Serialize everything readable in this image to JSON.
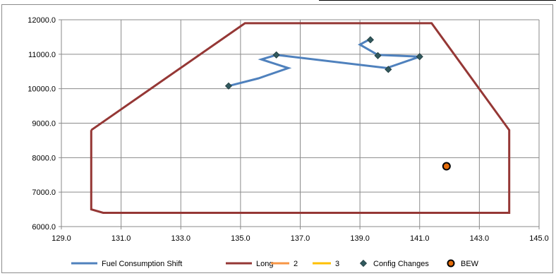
{
  "chart_data": {
    "type": "scatter",
    "xlim": [
      129.0,
      145.0
    ],
    "ylim": [
      6000.0,
      12000.0
    ],
    "x_ticks": [
      "129.0",
      "131.0",
      "133.0",
      "135.0",
      "137.0",
      "139.0",
      "141.0",
      "143.0",
      "145.0"
    ],
    "y_ticks": [
      "6000.0",
      "7000.0",
      "8000.0",
      "9000.0",
      "10000.0",
      "11000.0",
      "12000.0"
    ],
    "grid": true,
    "legend_position": "bottom",
    "series": [
      {
        "name": "Fuel Consumption Shift",
        "kind": "line",
        "color": "#4f81bd",
        "points": [
          [
            134.6,
            10080
          ],
          [
            135.6,
            10300
          ],
          [
            136.6,
            10600
          ],
          [
            135.7,
            10850
          ],
          [
            136.2,
            10980
          ],
          [
            139.9,
            10600
          ],
          [
            141.0,
            10930
          ],
          [
            139.6,
            10980
          ],
          [
            139.0,
            11280
          ],
          [
            139.3,
            11420
          ]
        ]
      },
      {
        "name": "Long",
        "kind": "line",
        "color": "#953735",
        "points": [
          [
            130.0,
            8800
          ],
          [
            135.15,
            11900
          ],
          [
            141.4,
            11900
          ],
          [
            144.0,
            8800
          ],
          [
            144.0,
            6400
          ],
          [
            130.4,
            6400
          ],
          [
            130.0,
            6500
          ],
          [
            130.0,
            8800
          ]
        ]
      },
      {
        "name": "2",
        "kind": "line",
        "color": "#f79646",
        "points": []
      },
      {
        "name": "3",
        "kind": "line",
        "color": "#ffc000",
        "points": []
      },
      {
        "name": "Config Changes",
        "kind": "marker",
        "marker": "diamond",
        "color": "#31595e",
        "points": [
          [
            134.6,
            10080
          ],
          [
            136.2,
            10980
          ],
          [
            139.35,
            11420
          ],
          [
            139.6,
            10960
          ],
          [
            141.0,
            10930
          ],
          [
            139.95,
            10560
          ]
        ]
      },
      {
        "name": "BEW",
        "kind": "marker",
        "marker": "circle",
        "color": "#e46c0a",
        "points": [
          [
            141.9,
            7750
          ]
        ]
      }
    ]
  }
}
